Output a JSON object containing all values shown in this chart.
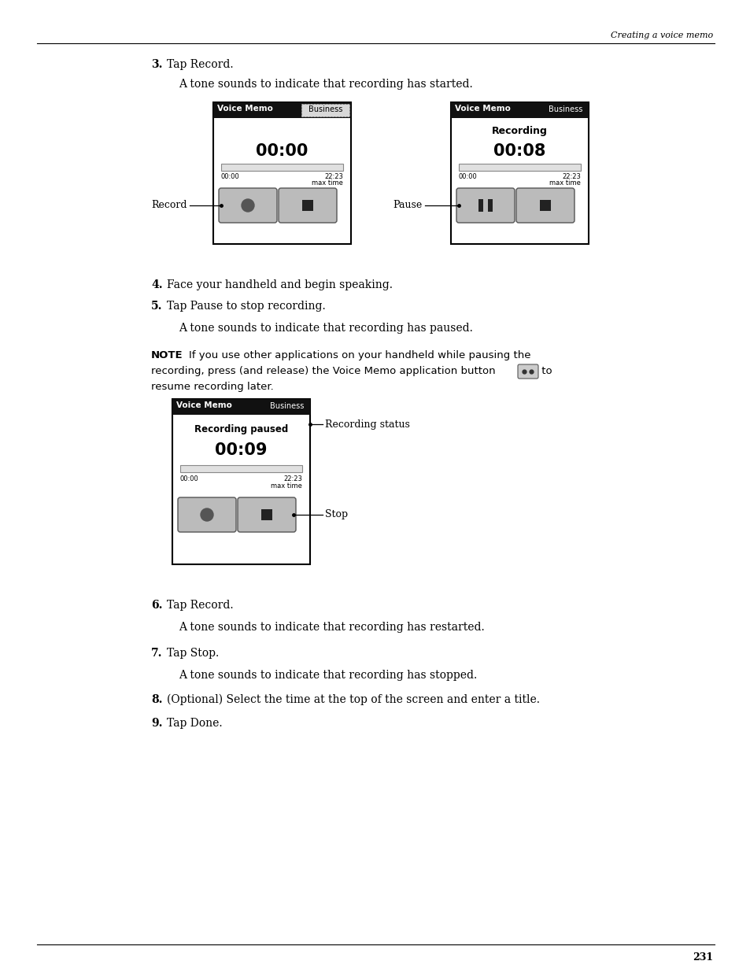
{
  "page_header_right": "Creating a voice memo",
  "page_number": "231",
  "bg_color": "#ffffff",
  "text_color": "#000000",
  "step3_bold": "3.",
  "step4_bold": "4.",
  "step5_bold": "5.",
  "step6_bold": "6.",
  "step7_bold": "7.",
  "step8_bold": "8.",
  "step9_bold": "9.",
  "screen1_time": "00:00",
  "screen2_status": "Recording",
  "screen2_time": "00:08",
  "screen3_status": "Recording paused",
  "screen3_time": "00:09",
  "bar_left": "00:00",
  "bar_right": "22:23",
  "bar_right2": "max time"
}
